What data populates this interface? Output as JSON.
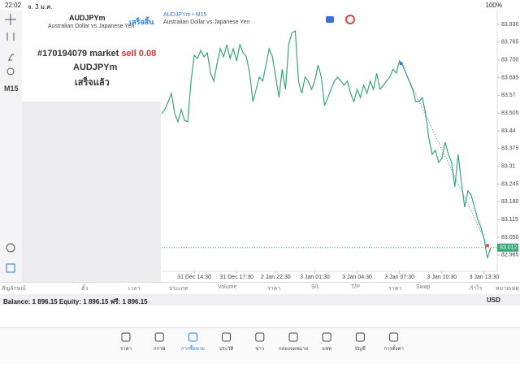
{
  "status": {
    "time": "22:02",
    "date": "จ. 3 ม.ค.",
    "battery": "100%"
  },
  "toolbar": {
    "timeframe": "M15"
  },
  "symbol_panel": {
    "symbol": "AUDJPYm",
    "description": "Australian Dollar vs Japanese Yen",
    "done_button": "เสร็จสิ้น",
    "order_text": "#170194079 market",
    "order_side": "sell 0.08",
    "order_symbol": "AUDJPYm",
    "order_status": "เสร็จแล้ว"
  },
  "chart_data": {
    "type": "line",
    "title": "AUDJPYm • M15",
    "subtitle": "Australian Dollar vs Japanese Yen",
    "color": "#3aa67a",
    "ylim": [
      82.925,
      83.848
    ],
    "xlim": [
      0,
      103
    ],
    "yticks": [
      {
        "value": 83.83,
        "label": "83.830"
      },
      83.765,
      {
        "value": 83.7,
        "label": "83.700"
      },
      83.635,
      83.57,
      83.505,
      83.44,
      83.375,
      83.31,
      83.245,
      {
        "value": 83.18,
        "label": "83.180"
      },
      83.115,
      {
        "value": 83.05,
        "label": "83.050"
      },
      82.985
    ],
    "xticks": [
      {
        "value": 10,
        "label": "31 Dec 14:30"
      },
      {
        "value": 23,
        "label": "31 Dec 17:30"
      },
      {
        "value": 35,
        "label": "2 Jan 22:30"
      },
      {
        "value": 47,
        "label": "3 Jan 01:30"
      },
      {
        "value": 60,
        "label": "3 Jan 04:30"
      },
      {
        "value": 73,
        "label": "3 Jan 07:30"
      },
      {
        "value": 86,
        "label": "3 Jan 10:30"
      },
      {
        "value": 99,
        "label": "3 Jan 13:30"
      }
    ],
    "values": [
      83.503,
      83.518,
      83.547,
      83.577,
      83.503,
      83.473,
      83.518,
      83.479,
      83.473,
      83.622,
      83.717,
      83.705,
      83.735,
      83.711,
      83.726,
      83.651,
      83.622,
      83.687,
      83.741,
      83.711,
      83.756,
      83.705,
      83.741,
      83.696,
      83.756,
      83.726,
      83.711,
      83.651,
      83.547,
      83.592,
      83.637,
      83.622,
      83.681,
      83.741,
      83.711,
      83.637,
      83.562,
      83.666,
      83.592,
      83.756,
      83.8,
      83.806,
      83.622,
      83.577,
      83.637,
      83.622,
      83.592,
      83.622,
      83.681,
      83.637,
      83.532,
      83.562,
      83.592,
      83.622,
      83.637,
      83.622,
      83.607,
      83.622,
      83.577,
      83.547,
      83.592,
      83.562,
      83.607,
      83.577,
      83.622,
      83.592,
      83.651,
      83.592,
      83.607,
      83.622,
      83.637,
      83.666,
      83.651,
      83.696,
      83.681,
      83.651,
      83.622,
      83.592,
      83.547,
      83.547,
      83.562,
      83.503,
      83.413,
      83.354,
      83.369,
      83.324,
      83.339,
      83.398,
      83.354,
      83.324,
      83.235,
      83.354,
      83.25,
      83.16,
      83.22,
      83.205,
      83.16,
      83.116,
      83.086,
      83.041,
      82.973,
      83.012
    ],
    "trade": {
      "open_x": 73.5,
      "open_price": 83.687,
      "close_x": 100,
      "close_price": 83.02
    },
    "current_price": 83.012
  },
  "table": {
    "headers": [
      "สัญลักษณ์",
      "ตั๋ว",
      "เวลา",
      "ประเภท",
      "Volume",
      "ราคา",
      "S/L",
      "T/P",
      "ราคา",
      "Swap",
      "กำไร",
      "หมายเหตุ"
    ],
    "balance": "Balance: 1 896.15 Equity: 1 896.15 ฟรี: 1 896.15",
    "currency": "USD"
  },
  "nav": [
    "ราคา",
    "กราฟ",
    "การซื้อขาย",
    "ประวัติ",
    "ข่าว",
    "กล่องจดหมาย",
    "แชท",
    "บัญชี",
    "การตั้งค่า"
  ]
}
